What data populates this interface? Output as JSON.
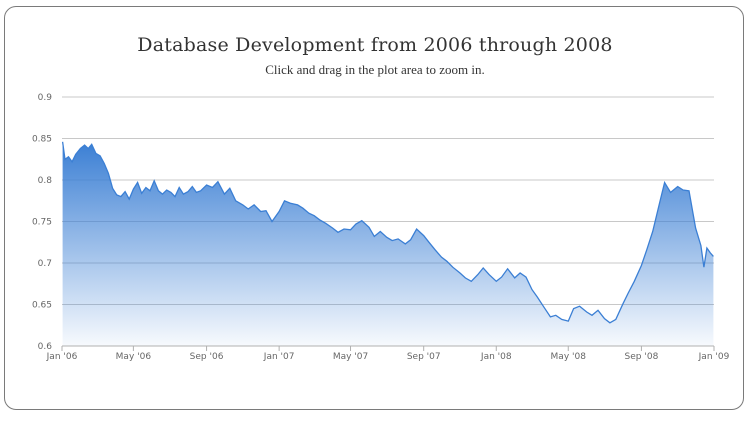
{
  "chart_data": {
    "type": "area",
    "title": "Database Development from 2006 through 2008",
    "subtitle": "Click and drag in the plot area to zoom in.",
    "xlabel": "",
    "ylabel": "",
    "ylim": [
      0.6,
      0.9
    ],
    "yticks": [
      0.6,
      0.65,
      0.7,
      0.75,
      0.8,
      0.85,
      0.9
    ],
    "ytick_labels": [
      "0.6",
      "0.65",
      "0.7",
      "0.75",
      "0.8",
      "0.85",
      "0.9"
    ],
    "xlim": [
      "2006-01-01",
      "2009-01-01"
    ],
    "xticks": [
      "2006-01-01",
      "2006-05-01",
      "2006-09-01",
      "2007-01-01",
      "2007-05-01",
      "2007-09-01",
      "2008-01-01",
      "2008-05-01",
      "2008-09-01",
      "2009-01-01"
    ],
    "xtick_labels": [
      "Jan '06",
      "May '06",
      "Sep '06",
      "Jan '07",
      "May '07",
      "Sep '07",
      "Jan '08",
      "May '08",
      "Sep '08",
      "Jan '09"
    ],
    "grid": true,
    "legend": false,
    "color": "#3b7fd4",
    "series": [
      {
        "x": [
          "2006-01-02",
          "2006-01-06",
          "2006-01-12",
          "2006-01-18",
          "2006-01-24",
          "2006-02-01",
          "2006-02-08",
          "2006-02-14",
          "2006-02-20",
          "2006-02-27",
          "2006-03-06",
          "2006-03-13",
          "2006-03-20",
          "2006-03-27",
          "2006-04-03",
          "2006-04-10",
          "2006-04-17",
          "2006-04-24",
          "2006-05-01",
          "2006-05-08",
          "2006-05-15",
          "2006-05-22",
          "2006-05-29",
          "2006-06-05",
          "2006-06-12",
          "2006-06-19",
          "2006-06-26",
          "2006-07-03",
          "2006-07-10",
          "2006-07-17",
          "2006-07-24",
          "2006-08-01",
          "2006-08-08",
          "2006-08-15",
          "2006-08-22",
          "2006-09-01",
          "2006-09-11",
          "2006-09-20",
          "2006-10-01",
          "2006-10-10",
          "2006-10-20",
          "2006-11-01",
          "2006-11-10",
          "2006-11-20",
          "2006-12-01",
          "2006-12-10",
          "2006-12-20",
          "2007-01-01",
          "2007-01-10",
          "2007-01-20",
          "2007-02-01",
          "2007-02-10",
          "2007-02-20",
          "2007-03-01",
          "2007-03-10",
          "2007-03-20",
          "2007-04-01",
          "2007-04-10",
          "2007-04-20",
          "2007-05-01",
          "2007-05-10",
          "2007-05-20",
          "2007-06-01",
          "2007-06-10",
          "2007-06-20",
          "2007-07-01",
          "2007-07-10",
          "2007-07-20",
          "2007-08-01",
          "2007-08-10",
          "2007-08-20",
          "2007-09-01",
          "2007-09-10",
          "2007-09-20",
          "2007-10-01",
          "2007-10-10",
          "2007-10-20",
          "2007-11-01",
          "2007-11-10",
          "2007-11-20",
          "2007-12-01",
          "2007-12-10",
          "2007-12-20",
          "2008-01-01",
          "2008-01-10",
          "2008-01-20",
          "2008-02-01",
          "2008-02-10",
          "2008-02-20",
          "2008-03-01",
          "2008-03-10",
          "2008-03-20",
          "2008-04-01",
          "2008-04-10",
          "2008-04-20",
          "2008-05-01",
          "2008-05-10",
          "2008-05-20",
          "2008-06-01",
          "2008-06-10",
          "2008-06-20",
          "2008-07-01",
          "2008-07-10",
          "2008-07-20",
          "2008-08-01",
          "2008-08-10",
          "2008-08-20",
          "2008-09-01",
          "2008-09-10",
          "2008-09-20",
          "2008-10-01",
          "2008-10-10",
          "2008-10-20",
          "2008-11-01",
          "2008-11-10",
          "2008-11-20",
          "2008-12-01",
          "2008-12-10",
          "2008-12-15",
          "2008-12-20",
          "2008-12-26",
          "2008-12-31"
        ],
        "y": [
          0.846,
          0.825,
          0.828,
          0.822,
          0.831,
          0.838,
          0.842,
          0.838,
          0.843,
          0.832,
          0.829,
          0.82,
          0.808,
          0.79,
          0.782,
          0.78,
          0.786,
          0.777,
          0.789,
          0.797,
          0.784,
          0.791,
          0.787,
          0.799,
          0.787,
          0.783,
          0.788,
          0.785,
          0.78,
          0.791,
          0.783,
          0.786,
          0.792,
          0.785,
          0.787,
          0.794,
          0.791,
          0.798,
          0.783,
          0.79,
          0.775,
          0.77,
          0.765,
          0.77,
          0.762,
          0.763,
          0.75,
          0.762,
          0.775,
          0.772,
          0.77,
          0.766,
          0.76,
          0.757,
          0.752,
          0.748,
          0.742,
          0.737,
          0.741,
          0.74,
          0.747,
          0.751,
          0.743,
          0.732,
          0.738,
          0.731,
          0.727,
          0.729,
          0.723,
          0.728,
          0.741,
          0.733,
          0.725,
          0.716,
          0.707,
          0.702,
          0.695,
          0.688,
          0.682,
          0.678,
          0.686,
          0.694,
          0.686,
          0.678,
          0.683,
          0.693,
          0.682,
          0.688,
          0.683,
          0.668,
          0.659,
          0.648,
          0.635,
          0.637,
          0.632,
          0.63,
          0.645,
          0.648,
          0.641,
          0.637,
          0.643,
          0.633,
          0.628,
          0.632,
          0.651,
          0.664,
          0.678,
          0.697,
          0.716,
          0.738,
          0.771,
          0.797,
          0.785,
          0.792,
          0.788,
          0.787,
          0.742,
          0.721,
          0.695,
          0.718,
          0.712,
          0.708
        ]
      }
    ]
  }
}
